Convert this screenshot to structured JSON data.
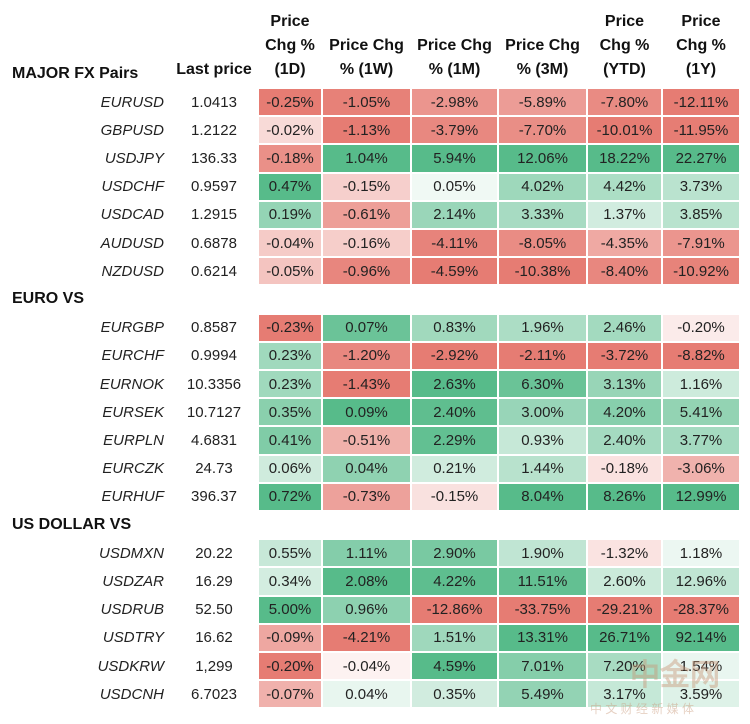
{
  "header": {
    "columns": [
      "Last price",
      "Price Chg % (1D)",
      "Price Chg % (1W)",
      "Price Chg % (1M)",
      "Price Chg % (3M)",
      "Price Chg % (YTD)",
      "Price Chg % (1Y)"
    ]
  },
  "sections": [
    {
      "title": "MAJOR FX Pairs",
      "rows": [
        [
          "EURUSD",
          "1.0413",
          "-0.25%",
          "-1.05%",
          "-2.98%",
          "-5.89%",
          "-7.80%",
          "-12.11%"
        ],
        [
          "GBPUSD",
          "1.2122",
          "-0.02%",
          "-1.13%",
          "-3.79%",
          "-7.70%",
          "-10.01%",
          "-11.95%"
        ],
        [
          "USDJPY",
          "136.33",
          "-0.18%",
          "1.04%",
          "5.94%",
          "12.06%",
          "18.22%",
          "22.27%"
        ],
        [
          "USDCHF",
          "0.9597",
          "0.47%",
          "-0.15%",
          "0.05%",
          "4.02%",
          "4.42%",
          "3.73%"
        ],
        [
          "USDCAD",
          "1.2915",
          "0.19%",
          "-0.61%",
          "2.14%",
          "3.33%",
          "1.37%",
          "3.85%"
        ],
        [
          "AUDUSD",
          "0.6878",
          "-0.04%",
          "-0.16%",
          "-4.11%",
          "-8.05%",
          "-4.35%",
          "-7.91%"
        ],
        [
          "NZDUSD",
          "0.6214",
          "-0.05%",
          "-0.96%",
          "-4.59%",
          "-10.38%",
          "-8.40%",
          "-10.92%"
        ]
      ]
    },
    {
      "title": "EURO VS",
      "rows": [
        [
          "EURGBP",
          "0.8587",
          "-0.23%",
          "0.07%",
          "0.83%",
          "1.96%",
          "2.46%",
          "-0.20%"
        ],
        [
          "EURCHF",
          "0.9994",
          "0.23%",
          "-1.20%",
          "-2.92%",
          "-2.11%",
          "-3.72%",
          "-8.82%"
        ],
        [
          "EURNOK",
          "10.3356",
          "0.23%",
          "-1.43%",
          "2.63%",
          "6.30%",
          "3.13%",
          "1.16%"
        ],
        [
          "EURSEK",
          "10.7127",
          "0.35%",
          "0.09%",
          "2.40%",
          "3.00%",
          "4.20%",
          "5.41%"
        ],
        [
          "EURPLN",
          "4.6831",
          "0.41%",
          "-0.51%",
          "2.29%",
          "0.93%",
          "2.40%",
          "3.77%"
        ],
        [
          "EURCZK",
          "24.73",
          "0.06%",
          "0.04%",
          "0.21%",
          "1.44%",
          "-0.18%",
          "-3.06%"
        ],
        [
          "EURHUF",
          "396.37",
          "0.72%",
          "-0.73%",
          "-0.15%",
          "8.04%",
          "8.26%",
          "12.99%"
        ]
      ]
    },
    {
      "title": "US DOLLAR VS",
      "rows": [
        [
          "USDMXN",
          "20.22",
          "0.55%",
          "1.11%",
          "2.90%",
          "1.90%",
          "-1.32%",
          "1.18%"
        ],
        [
          "USDZAR",
          "16.29",
          "0.34%",
          "2.08%",
          "4.22%",
          "11.51%",
          "2.60%",
          "12.96%"
        ],
        [
          "USDRUB",
          "52.50",
          "5.00%",
          "0.96%",
          "-12.86%",
          "-33.75%",
          "-29.21%",
          "-28.37%"
        ],
        [
          "USDTRY",
          "16.62",
          "-0.09%",
          "-4.21%",
          "1.51%",
          "13.31%",
          "26.71%",
          "92.14%"
        ],
        [
          "USDKRW",
          "1,299",
          "-0.20%",
          "-0.04%",
          "4.59%",
          "7.01%",
          "7.20%",
          "1.54%"
        ],
        [
          "USDCNH",
          "6.7023",
          "-0.07%",
          "0.04%",
          "0.35%",
          "5.49%",
          "3.17%",
          "3.59%"
        ]
      ]
    }
  ],
  "watermark": {
    "logo": "中金网",
    "tagline": "中 文 财 经 新 媒 体"
  }
}
